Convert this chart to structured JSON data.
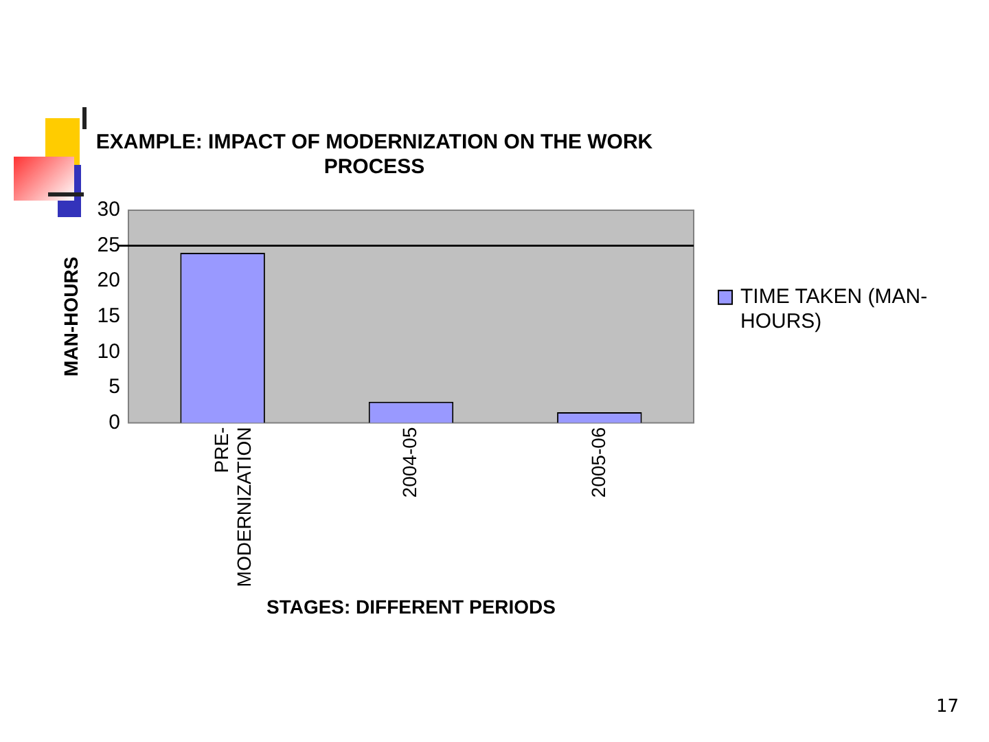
{
  "chart_data": {
    "type": "bar",
    "title": [
      "EXAMPLE: IMPACT OF MODERNIZATION ON THE WORK",
      "PROCESS"
    ],
    "xlabel": "STAGES: DIFFERENT PERIODS",
    "ylabel": "MAN-HOURS",
    "categories": [
      "PRE-MODERNIZATION",
      "2004-05",
      "2005-06"
    ],
    "series": [
      {
        "name": "TIME TAKEN (MAN-HOURS)",
        "color": "#9999ff",
        "values": [
          24,
          3,
          1.5
        ]
      }
    ],
    "ylim": [
      0,
      30
    ],
    "yticks": [
      0,
      5,
      10,
      15,
      20,
      25,
      30
    ],
    "ref_lines": [
      {
        "axis": "y",
        "value": 25,
        "color": "#000000"
      }
    ],
    "grid": false,
    "legend": "right",
    "annotations": [
      "17"
    ]
  }
}
